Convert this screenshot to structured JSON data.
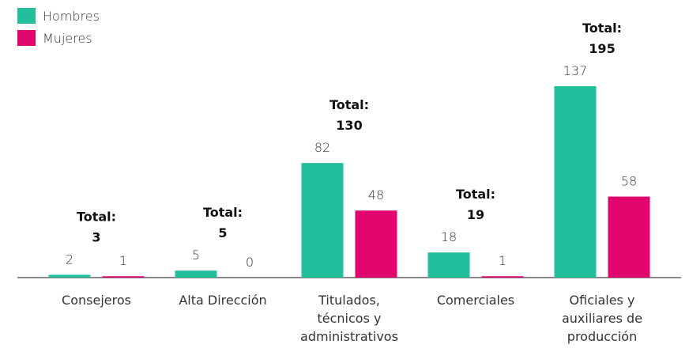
{
  "chart_data": {
    "type": "bar",
    "categories": [
      "Consejeros",
      "Alta Dirección",
      "Titulados, técnicos y administrativos",
      "Comerciales",
      "Oficiales y auxiliares de producción"
    ],
    "series": [
      {
        "name": "Hombres",
        "color": "#23bf9c",
        "values": [
          2,
          5,
          82,
          18,
          137
        ]
      },
      {
        "name": "Mujeres",
        "color": "#e0066e",
        "values": [
          1,
          0,
          48,
          1,
          58
        ]
      }
    ],
    "total_label": "Total:",
    "totals": [
      3,
      5,
      130,
      19,
      195
    ],
    "legend": "top-left"
  }
}
